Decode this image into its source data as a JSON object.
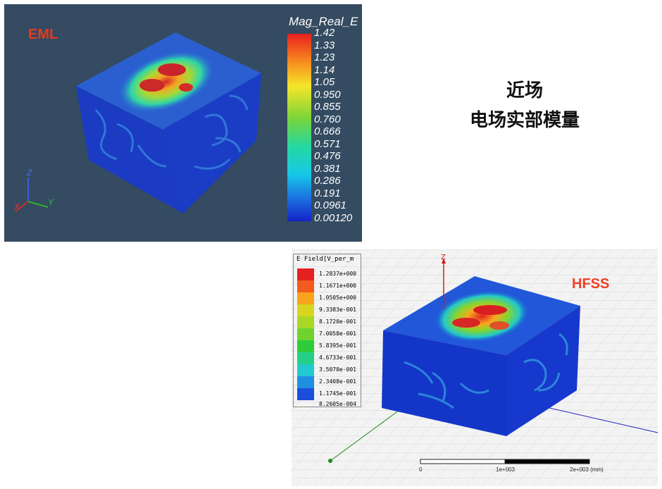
{
  "eml": {
    "label": "EML",
    "legend_title": "Mag_Real_E",
    "ticks": [
      "1.42",
      "1.33",
      "1.23",
      "1.14",
      "1.05",
      "0.950",
      "0.855",
      "0.760",
      "0.666",
      "0.571",
      "0.476",
      "0.381",
      "0.286",
      "0.191",
      "0.0961",
      "0.00120"
    ],
    "axes": {
      "z": "Z",
      "x": "X",
      "y": "Y"
    }
  },
  "heading": {
    "line1": "近场",
    "line2": "电场实部模量"
  },
  "hfss": {
    "label": "HFSS",
    "legend_title": "E Field[V_per_m",
    "ticks": [
      "1.2837e+000",
      "1.1671e+000",
      "1.0505e+000",
      "9.3383e-001",
      "8.1720e-001",
      "7.0058e-001",
      "5.8395e-001",
      "4.6733e-001",
      "3.5070e-001",
      "2.3408e-001",
      "1.1745e-001",
      "8.2605e-004"
    ],
    "axis_z": "Z",
    "scale": {
      "zero": "0",
      "mid": "1e+003",
      "end": "2e+003 (mm)"
    }
  },
  "colors": {
    "eml_bg": "#344b61",
    "label_red": "#e53a22"
  }
}
